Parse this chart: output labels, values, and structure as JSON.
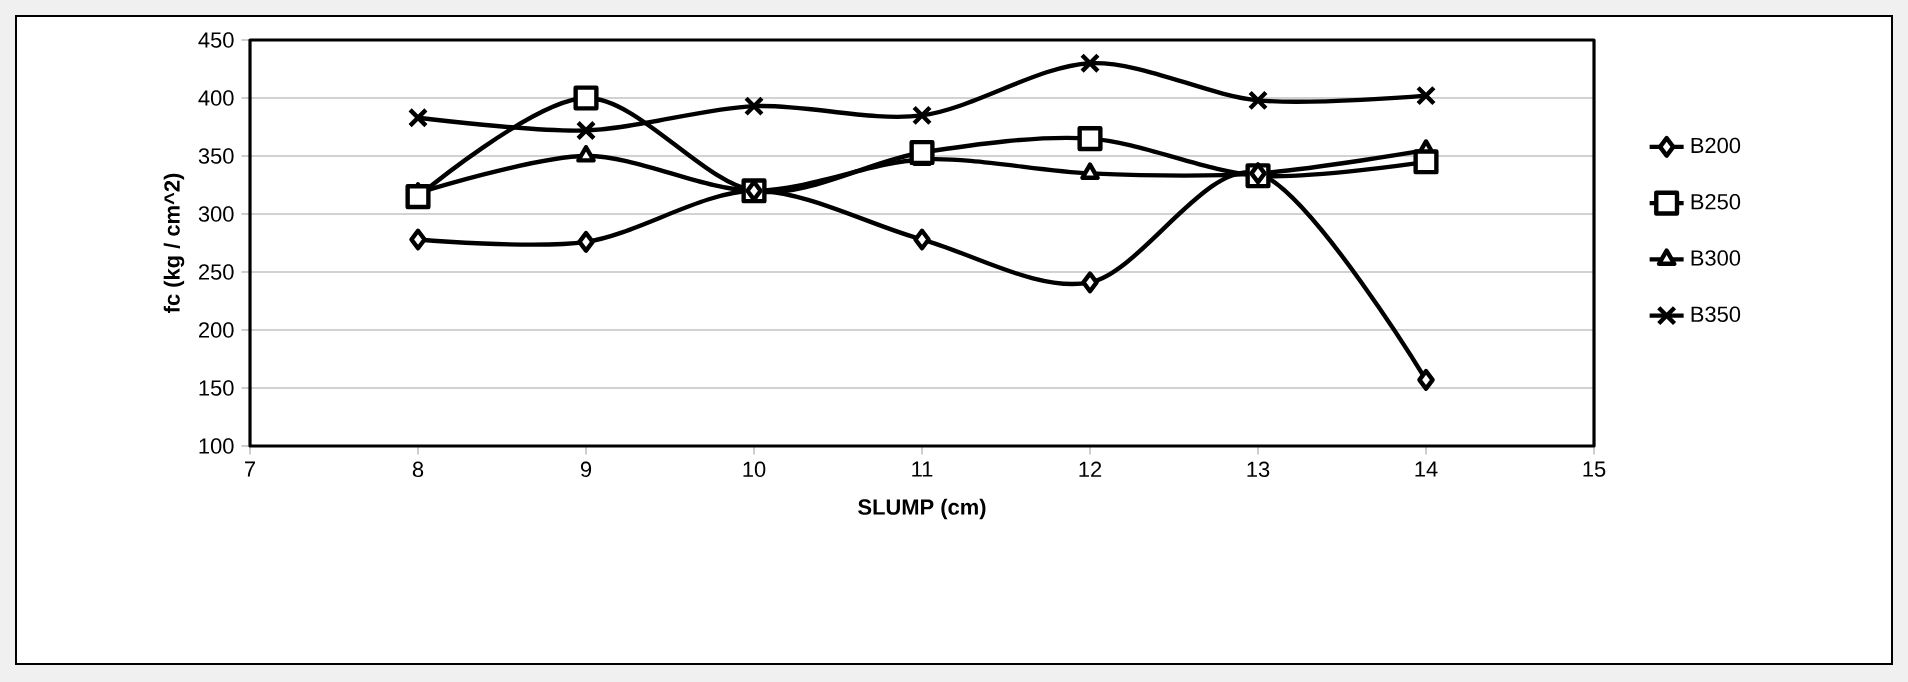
{
  "chart_data": {
    "type": "line",
    "xlabel": "SLUMP (cm)",
    "ylabel": "fc (kg / cm^2)",
    "x": [
      8,
      9,
      10,
      11,
      12,
      13,
      14
    ],
    "series": [
      {
        "name": "B200",
        "color": "#000000",
        "marker": "diamond",
        "values": [
          278,
          276,
          320,
          278,
          241,
          335,
          157
        ]
      },
      {
        "name": "B250",
        "color": "#000000",
        "marker": "square",
        "values": [
          315,
          400,
          320,
          353,
          365,
          333,
          345
        ]
      },
      {
        "name": "B300",
        "color": "#000000",
        "marker": "triangle",
        "values": [
          318,
          350,
          320,
          347,
          335,
          335,
          355
        ]
      },
      {
        "name": "B350",
        "color": "#000000",
        "marker": "cross",
        "values": [
          383,
          372,
          393,
          385,
          430,
          398,
          402
        ]
      }
    ],
    "xlim": [
      7,
      15
    ],
    "xticks": [
      7,
      8,
      9,
      10,
      11,
      12,
      13,
      14,
      15
    ],
    "ylim": [
      100,
      450
    ],
    "yticks": [
      100,
      150,
      200,
      250,
      300,
      350,
      400,
      450
    ],
    "grid": "y",
    "legend": "right",
    "line_style": "solid"
  }
}
